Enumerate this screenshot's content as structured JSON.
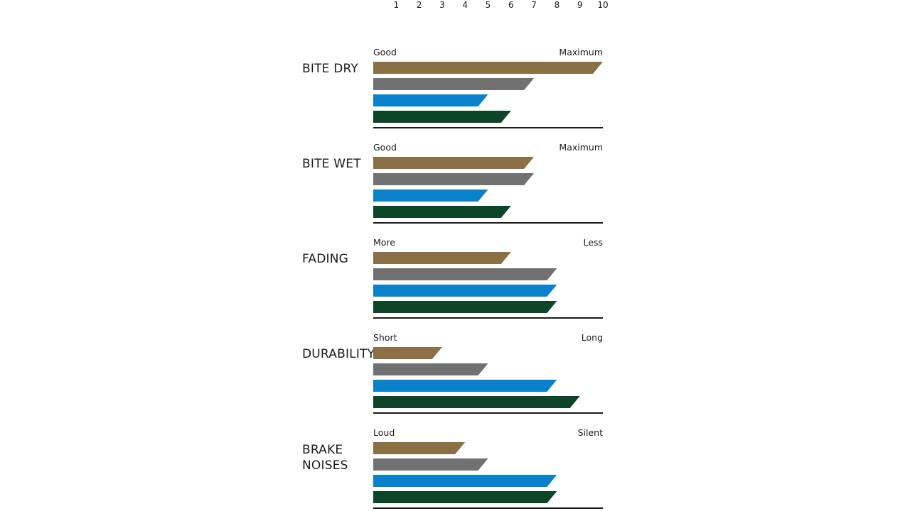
{
  "chart_data": {
    "type": "bar",
    "orientation": "horizontal",
    "scale": {
      "min": 0,
      "max": 10,
      "ticks": [
        "1",
        "2",
        "3",
        "4",
        "5",
        "6",
        "7",
        "8",
        "9",
        "10"
      ]
    },
    "series_colors": [
      "#8b7045",
      "#717171",
      "#0a82cb",
      "#0d4528"
    ],
    "groups": [
      {
        "label": [
          "BITE DRY"
        ],
        "low": "Good",
        "high": "Maximum",
        "values": [
          10,
          7,
          5,
          6
        ]
      },
      {
        "label": [
          "BITE WET"
        ],
        "low": "Good",
        "high": "Maximum",
        "values": [
          7,
          7,
          5,
          6
        ]
      },
      {
        "label": [
          "FADING"
        ],
        "low": "More",
        "high": "Less",
        "values": [
          6,
          8,
          8,
          8
        ]
      },
      {
        "label": [
          "DURABILITY"
        ],
        "low": "Short",
        "high": "Long",
        "values": [
          3,
          5,
          8,
          9
        ]
      },
      {
        "label": [
          "BRAKE",
          "NOISES"
        ],
        "low": "Loud",
        "high": "Silent",
        "values": [
          4,
          5,
          8,
          8
        ]
      }
    ]
  }
}
